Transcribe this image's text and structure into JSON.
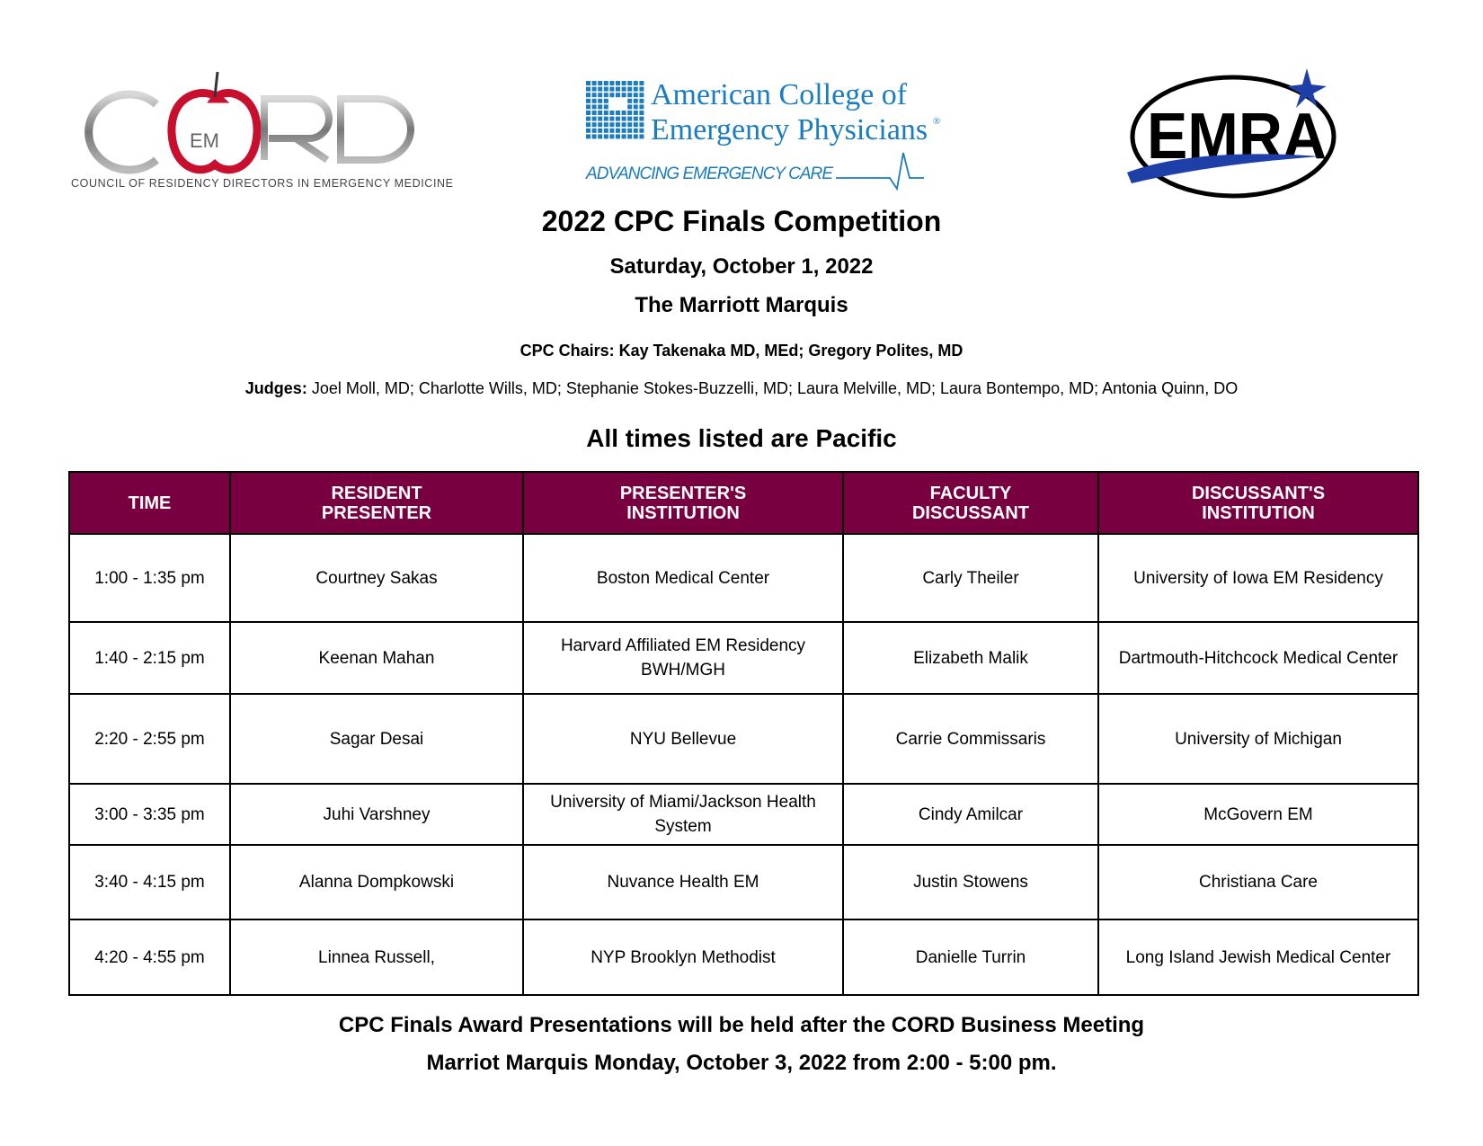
{
  "logos": {
    "cord": {
      "wordmark": "CORD",
      "badge": "EM",
      "tagline": "COUNCIL OF RESIDENCY DIRECTORS IN EMERGENCY MEDICINE"
    },
    "acep": {
      "line1": "American College of",
      "line2": "Emergency Physicians",
      "registered": "®",
      "tagline": "ADVANCING EMERGENCY CARE"
    },
    "emra": {
      "wordmark": "EMRA"
    }
  },
  "colors": {
    "header_bg": "#780040",
    "acep_blue": "#1a7cc1",
    "emra_blue": "#1f3fa8",
    "cord_red": "#c8102e"
  },
  "header": {
    "title": "2022 CPC Finals Competition",
    "date": "Saturday, October 1, 2022",
    "venue": "The Marriott Marquis",
    "chairs": "CPC Chairs: Kay Takenaka MD, MEd; Gregory Polites, MD",
    "judges_label": "Judges:",
    "judges": " Joel Moll, MD; Charlotte Wills, MD; Stephanie Stokes-Buzzelli, MD; Laura Melville, MD; Laura Bontempo, MD; Antonia Quinn, DO",
    "timezone_note": "All times listed are Pacific"
  },
  "table": {
    "columns": [
      "TIME",
      "RESIDENT PRESENTER",
      "PRESENTER'S INSTITUTION",
      "FACULTY DISCUSSANT",
      "DISCUSSANT'S INSTITUTION"
    ],
    "rows": [
      [
        "1:00 - 1:35 pm",
        "Courtney Sakas",
        "Boston Medical Center",
        "Carly Theiler",
        "University of Iowa EM Residency"
      ],
      [
        "1:40 - 2:15 pm",
        "Keenan Mahan",
        "Harvard Affiliated EM Residency BWH/MGH",
        "Elizabeth Malik",
        "Dartmouth-Hitchcock Medical Center"
      ],
      [
        "2:20 - 2:55 pm",
        "Sagar Desai",
        "NYU Bellevue",
        "Carrie Commissaris",
        "University of Michigan"
      ],
      [
        "3:00 - 3:35 pm",
        "Juhi Varshney",
        "University of Miami/Jackson Health System",
        "Cindy Amilcar",
        "McGovern EM"
      ],
      [
        "3:40 - 4:15 pm",
        "Alanna Dompkowski",
        "Nuvance Health EM",
        "Justin Stowens",
        "Christiana Care"
      ],
      [
        "4:20 - 4:55 pm",
        "Linnea Russell,",
        "NYP Brooklyn Methodist",
        "Danielle Turrin",
        "Long Island Jewish Medical Center"
      ]
    ]
  },
  "footer": {
    "line1": "CPC Finals Award Presentations will be held after the CORD Business Meeting",
    "line2": "Marriot Marquis Monday, October 3, 2022 from 2:00 - 5:00 pm."
  }
}
